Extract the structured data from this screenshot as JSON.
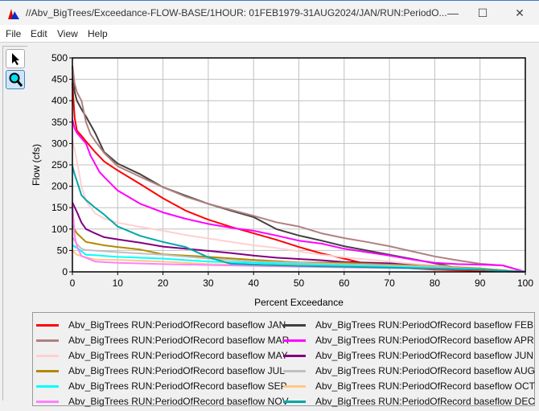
{
  "window": {
    "title": "//Abv_BigTrees/Exceedance-FLOW-BASE/1HOUR: 01FEB1979-31AUG2024/JAN/RUN:PeriodO...",
    "minimize": "—",
    "maximize": "☐",
    "close": "✕"
  },
  "menu": [
    "File",
    "Edit",
    "View",
    "Help"
  ],
  "toolbar": [
    {
      "icon": "pointer-arrow-icon"
    },
    {
      "icon": "zoom-magnifier-icon",
      "selected": true
    }
  ],
  "chart_data": {
    "type": "line",
    "title": "",
    "xlabel": "Percent Exceedance",
    "ylabel": "Flow (cfs)",
    "xlim": [
      0,
      100
    ],
    "ylim": [
      0,
      500
    ],
    "xticks": [
      0,
      10,
      20,
      30,
      40,
      50,
      60,
      70,
      80,
      90,
      100
    ],
    "yticks": [
      0,
      50,
      100,
      150,
      200,
      250,
      300,
      350,
      400,
      450,
      500
    ],
    "grid": true,
    "legend_placement": "bottom",
    "series": [
      {
        "name": "Abv_BigTrees RUN:PeriodOfRecord baseflow JAN",
        "color": "#ff0000",
        "points": [
          [
            0,
            441
          ],
          [
            0.5,
            360
          ],
          [
            1,
            330
          ],
          [
            2,
            318
          ],
          [
            3,
            305
          ],
          [
            5,
            280
          ],
          [
            7,
            258
          ],
          [
            10,
            237
          ],
          [
            15,
            205
          ],
          [
            20,
            172
          ],
          [
            25,
            143
          ],
          [
            30,
            122
          ],
          [
            35,
            105
          ],
          [
            40,
            90
          ],
          [
            45,
            75
          ],
          [
            50,
            58
          ],
          [
            55,
            43
          ],
          [
            60,
            31
          ],
          [
            65,
            18
          ],
          [
            70,
            12
          ],
          [
            75,
            8
          ],
          [
            80,
            5
          ],
          [
            90,
            2
          ],
          [
            100,
            0
          ]
        ]
      },
      {
        "name": "Abv_BigTrees RUN:PeriodOfRecord baseflow FEB",
        "color": "#404040",
        "points": [
          [
            0,
            480
          ],
          [
            0.5,
            420
          ],
          [
            1,
            400
          ],
          [
            2,
            380
          ],
          [
            3,
            363
          ],
          [
            5,
            325
          ],
          [
            7,
            280
          ],
          [
            10,
            253
          ],
          [
            15,
            228
          ],
          [
            20,
            198
          ],
          [
            25,
            178
          ],
          [
            30,
            159
          ],
          [
            35,
            143
          ],
          [
            40,
            128
          ],
          [
            45,
            100
          ],
          [
            50,
            85
          ],
          [
            55,
            73
          ],
          [
            60,
            60
          ],
          [
            65,
            50
          ],
          [
            70,
            40
          ],
          [
            75,
            30
          ],
          [
            80,
            20
          ],
          [
            85,
            10
          ],
          [
            90,
            6
          ],
          [
            95,
            3
          ],
          [
            100,
            0
          ]
        ]
      },
      {
        "name": "Abv_BigTrees RUN:PeriodOfRecord baseflow MAR",
        "color": "#b08080",
        "points": [
          [
            0,
            482
          ],
          [
            0.5,
            440
          ],
          [
            1,
            420
          ],
          [
            2,
            400
          ],
          [
            3,
            350
          ],
          [
            4,
            322
          ],
          [
            5,
            306
          ],
          [
            7,
            278
          ],
          [
            10,
            247
          ],
          [
            15,
            222
          ],
          [
            20,
            198
          ],
          [
            25,
            176
          ],
          [
            30,
            159
          ],
          [
            35,
            145
          ],
          [
            40,
            131
          ],
          [
            45,
            116
          ],
          [
            50,
            106
          ],
          [
            55,
            90
          ],
          [
            60,
            79
          ],
          [
            65,
            70
          ],
          [
            70,
            60
          ],
          [
            75,
            48
          ],
          [
            80,
            36
          ],
          [
            85,
            27
          ],
          [
            90,
            19
          ],
          [
            95,
            15
          ],
          [
            100,
            0
          ]
        ]
      },
      {
        "name": "Abv_BigTrees RUN:PeriodOfRecord baseflow APR",
        "color": "#ff00ff",
        "points": [
          [
            0,
            356
          ],
          [
            0.5,
            335
          ],
          [
            1,
            325
          ],
          [
            2,
            312
          ],
          [
            3,
            300
          ],
          [
            4,
            272
          ],
          [
            6,
            233
          ],
          [
            7,
            222
          ],
          [
            10,
            190
          ],
          [
            15,
            159
          ],
          [
            20,
            139
          ],
          [
            25,
            124
          ],
          [
            30,
            112
          ],
          [
            35,
            103
          ],
          [
            40,
            96
          ],
          [
            45,
            85
          ],
          [
            50,
            73
          ],
          [
            55,
            66
          ],
          [
            60,
            54
          ],
          [
            65,
            46
          ],
          [
            70,
            38
          ],
          [
            75,
            29
          ],
          [
            80,
            21
          ],
          [
            85,
            18
          ],
          [
            90,
            17
          ],
          [
            95,
            15
          ],
          [
            100,
            0
          ]
        ]
      },
      {
        "name": "Abv_BigTrees RUN:PeriodOfRecord baseflow MAY",
        "color": "#ffd0d0",
        "points": [
          [
            0,
            310
          ],
          [
            1,
            259
          ],
          [
            2,
            200
          ],
          [
            3,
            165
          ],
          [
            5,
            137
          ],
          [
            7,
            125
          ],
          [
            10,
            115
          ],
          [
            15,
            105
          ],
          [
            20,
            96
          ],
          [
            25,
            86
          ],
          [
            30,
            78
          ],
          [
            35,
            70
          ],
          [
            40,
            62
          ],
          [
            45,
            56
          ],
          [
            50,
            48
          ],
          [
            55,
            40
          ],
          [
            60,
            34
          ],
          [
            65,
            29
          ],
          [
            70,
            24
          ],
          [
            75,
            19
          ],
          [
            80,
            15
          ],
          [
            90,
            8
          ],
          [
            100,
            0
          ]
        ]
      },
      {
        "name": "Abv_BigTrees RUN:PeriodOfRecord baseflow JUN",
        "color": "#800080",
        "points": [
          [
            0,
            162
          ],
          [
            1,
            140
          ],
          [
            2,
            115
          ],
          [
            3,
            100
          ],
          [
            5,
            90
          ],
          [
            7,
            81
          ],
          [
            10,
            76
          ],
          [
            15,
            68
          ],
          [
            20,
            59
          ],
          [
            25,
            54
          ],
          [
            30,
            49
          ],
          [
            35,
            44
          ],
          [
            40,
            38
          ],
          [
            45,
            33
          ],
          [
            50,
            30
          ],
          [
            55,
            27
          ],
          [
            60,
            23
          ],
          [
            70,
            20
          ],
          [
            80,
            11
          ],
          [
            90,
            6
          ],
          [
            100,
            0
          ]
        ]
      },
      {
        "name": "Abv_BigTrees RUN:PeriodOfRecord baseflow JUL",
        "color": "#b08a00",
        "points": [
          [
            0,
            108
          ],
          [
            1,
            90
          ],
          [
            3,
            70
          ],
          [
            5,
            66
          ],
          [
            7,
            62
          ],
          [
            10,
            58
          ],
          [
            15,
            52
          ],
          [
            20,
            41
          ],
          [
            30,
            35
          ],
          [
            40,
            28
          ],
          [
            50,
            22
          ],
          [
            60,
            21
          ],
          [
            70,
            17
          ],
          [
            80,
            13
          ],
          [
            90,
            8
          ],
          [
            100,
            0
          ]
        ]
      },
      {
        "name": "Abv_BigTrees RUN:PeriodOfRecord baseflow AUG",
        "color": "#c0c0c0",
        "points": [
          [
            0,
            81
          ],
          [
            1,
            65
          ],
          [
            2,
            54
          ],
          [
            3,
            51
          ],
          [
            10,
            46
          ],
          [
            20,
            40
          ],
          [
            30,
            31
          ],
          [
            40,
            24
          ],
          [
            50,
            21
          ],
          [
            60,
            18
          ],
          [
            80,
            12
          ],
          [
            90,
            6
          ],
          [
            100,
            0
          ]
        ]
      },
      {
        "name": "Abv_BigTrees RUN:PeriodOfRecord baseflow SEP",
        "color": "#00ffff",
        "points": [
          [
            0,
            62
          ],
          [
            1,
            56
          ],
          [
            3,
            40
          ],
          [
            5,
            39
          ],
          [
            10,
            35
          ],
          [
            20,
            31
          ],
          [
            30,
            24
          ],
          [
            40,
            21
          ],
          [
            50,
            18
          ],
          [
            70,
            12
          ],
          [
            90,
            6
          ],
          [
            100,
            0
          ]
        ]
      },
      {
        "name": "Abv_BigTrees RUN:PeriodOfRecord baseflow OCT",
        "color": "#ffc880",
        "points": [
          [
            0,
            50
          ],
          [
            1,
            40
          ],
          [
            3,
            34
          ],
          [
            5,
            29
          ],
          [
            10,
            28
          ],
          [
            20,
            24
          ],
          [
            30,
            18
          ],
          [
            50,
            15
          ],
          [
            70,
            10
          ],
          [
            90,
            5
          ],
          [
            100,
            0
          ]
        ]
      },
      {
        "name": "Abv_BigTrees RUN:PeriodOfRecord baseflow NOV",
        "color": "#ff80ff",
        "points": [
          [
            0,
            159
          ],
          [
            0.5,
            84
          ],
          [
            1,
            59
          ],
          [
            2,
            37
          ],
          [
            3,
            33
          ],
          [
            5,
            24
          ],
          [
            10,
            21
          ],
          [
            20,
            18
          ],
          [
            30,
            16
          ],
          [
            50,
            12
          ],
          [
            70,
            9
          ],
          [
            90,
            5
          ],
          [
            100,
            0
          ]
        ]
      },
      {
        "name": "Abv_BigTrees RUN:PeriodOfRecord baseflow DEC",
        "color": "#00a8a8",
        "points": [
          [
            0,
            247
          ],
          [
            0.5,
            228
          ],
          [
            2,
            179
          ],
          [
            3,
            168
          ],
          [
            5,
            150
          ],
          [
            7,
            134
          ],
          [
            10,
            106
          ],
          [
            15,
            84
          ],
          [
            20,
            70
          ],
          [
            25,
            58
          ],
          [
            30,
            34
          ],
          [
            35,
            19
          ],
          [
            40,
            17
          ],
          [
            50,
            14
          ],
          [
            70,
            10
          ],
          [
            90,
            5
          ],
          [
            100,
            0
          ]
        ]
      }
    ]
  }
}
